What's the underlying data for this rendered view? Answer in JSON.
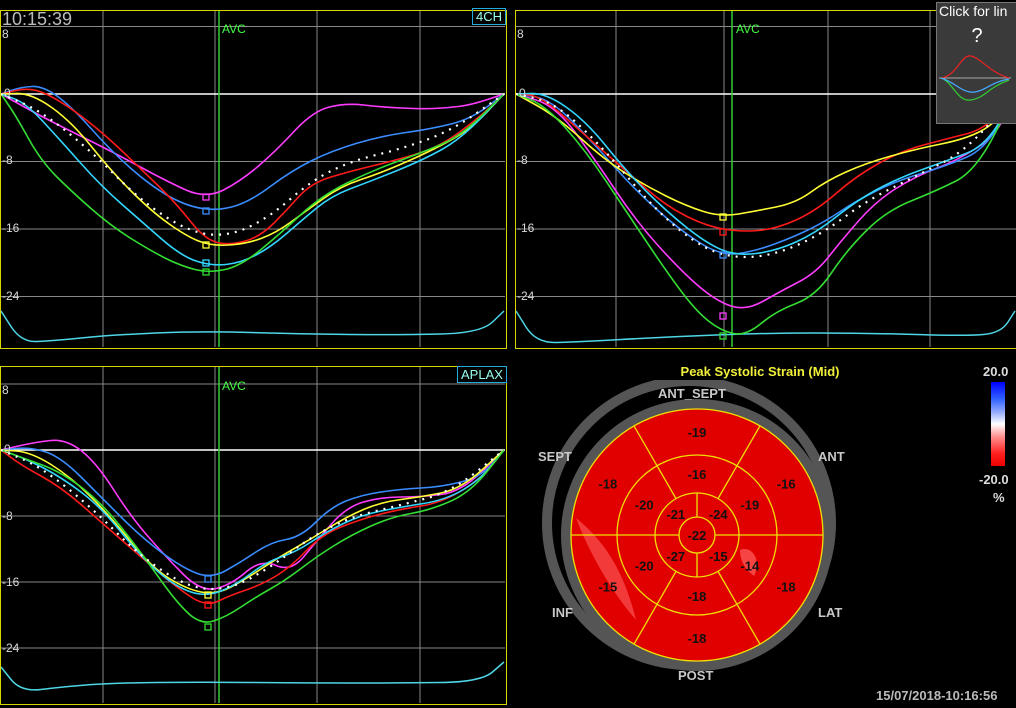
{
  "clock": "10:15:39",
  "help": {
    "label": "Click for lin",
    "symbol": "?"
  },
  "panels": [
    {
      "id": "4ch",
      "tag": "4CH",
      "avc_label": "AVC",
      "y_ticks": [
        "8",
        "0",
        "-8",
        "-16",
        "-24"
      ]
    },
    {
      "id": "2ch",
      "tag": "",
      "avc_label": "AVC",
      "y_ticks": [
        "8",
        "0",
        "-8",
        "-16",
        "-24"
      ]
    },
    {
      "id": "aplax",
      "tag": "APLAX",
      "avc_label": "AVC",
      "y_ticks": [
        "8",
        "0",
        "-8",
        "-16",
        "-24"
      ]
    }
  ],
  "series_colors": {
    "magenta": "#ff3cff",
    "blue": "#3a8cff",
    "red": "#ff1a1a",
    "yellow": "#ffff33",
    "cyan": "#33d6ff",
    "green": "#33dd33",
    "average": "#ffffff",
    "ecg": "#4fd6e6"
  },
  "bullseye": {
    "title": "Peak Systolic Strain (Mid)",
    "wall_labels": {
      "ant_sept": "ANT_SEPT",
      "ant": "ANT",
      "lat": "LAT",
      "post": "POST",
      "inf": "INF",
      "sept": "SEPT"
    },
    "basal": [
      "-19",
      "-16",
      "-18",
      "-18",
      "-15",
      "-18"
    ],
    "mid": [
      "-16",
      "-19",
      "-14",
      "-18",
      "-20",
      "-20"
    ],
    "apical": [
      "-24",
      "-15",
      "-27",
      "-21"
    ],
    "apex": "-22",
    "fill_color": "#e00000",
    "grid_color": "#f0e000"
  },
  "scale": {
    "max": "20.0",
    "min": "-20.0",
    "unit": "%"
  },
  "timestamp": "15/07/2018-10:16:56"
}
